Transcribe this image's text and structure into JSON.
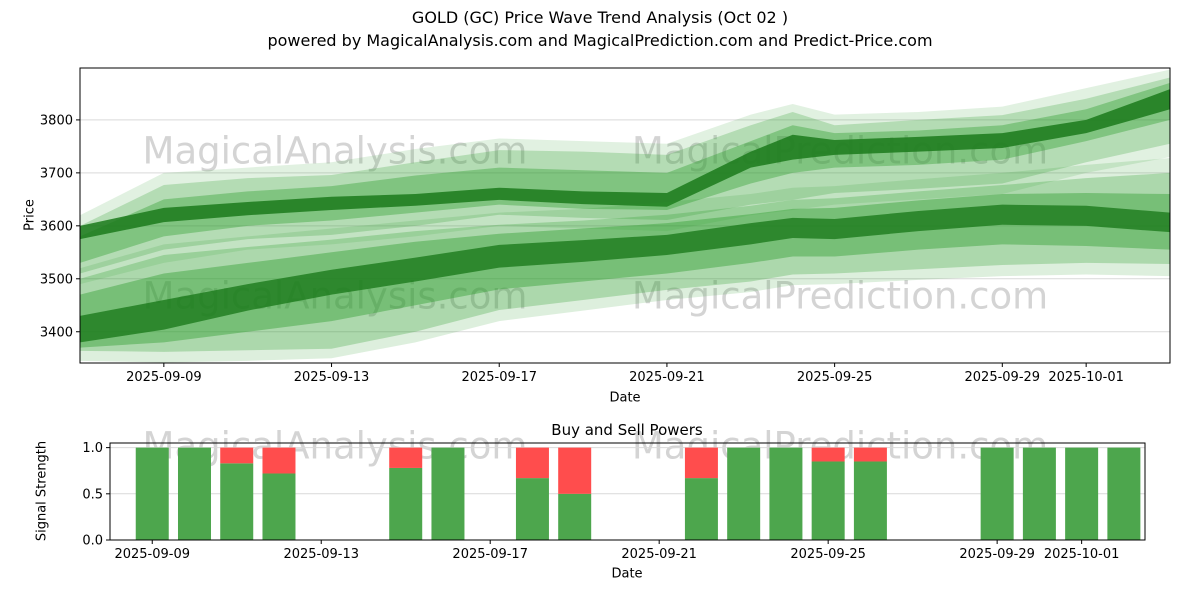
{
  "title": {
    "line1": "GOLD (GC) Price Wave Trend Analysis (Oct 02 )",
    "line2": "powered by MagicalAnalysis.com and MagicalPrediction.com and Predict-Price.com"
  },
  "watermarks": {
    "analysis": "MagicalAnalysis.com",
    "prediction": "MagicalPrediction.com"
  },
  "colors": {
    "band_green": "#2e9e2e",
    "band_dark_green": "#1b7a1b",
    "bar_green": "#4da64d",
    "bar_red": "#ff4d4d",
    "grid": "#d9d9d9",
    "spine": "#000000",
    "tick_text": "#000000"
  },
  "chart_data": [
    {
      "type": "area",
      "name": "price-wave-trend",
      "title": "",
      "ylabel": "Price",
      "xlabel": "Date",
      "ylim": [
        3341,
        3898
      ],
      "xdomain": [
        "2025-09-07",
        "2025-10-03"
      ],
      "grid": "horizontal",
      "legend": "none",
      "yticks": [
        {
          "v": 3400,
          "label": "3400"
        },
        {
          "v": 3500,
          "label": "3500"
        },
        {
          "v": 3600,
          "label": "3600"
        },
        {
          "v": 3700,
          "label": "3700"
        },
        {
          "v": 3800,
          "label": "3800"
        }
      ],
      "xticks": [
        {
          "date": "2025-09-09",
          "label": "2025-09-09"
        },
        {
          "date": "2025-09-13",
          "label": "2025-09-13"
        },
        {
          "date": "2025-09-17",
          "label": "2025-09-17"
        },
        {
          "date": "2025-09-21",
          "label": "2025-09-21"
        },
        {
          "date": "2025-09-25",
          "label": "2025-09-25"
        },
        {
          "date": "2025-09-29",
          "label": "2025-09-29"
        },
        {
          "date": "2025-10-01",
          "label": "2025-10-01"
        }
      ],
      "band_dates": [
        "2025-09-07",
        "2025-09-09",
        "2025-09-11",
        "2025-09-13",
        "2025-09-15",
        "2025-09-17",
        "2025-09-19",
        "2025-09-21",
        "2025-09-23",
        "2025-09-24",
        "2025-09-25",
        "2025-09-27",
        "2025-09-29",
        "2025-10-01",
        "2025-10-03"
      ],
      "bands": [
        {
          "name": "upper-faint",
          "color": "band_green",
          "opacity": 0.14,
          "hi": [
            3620,
            3700,
            3710,
            3720,
            3745,
            3765,
            3760,
            3755,
            3810,
            3830,
            3810,
            3815,
            3825,
            3860,
            3895
          ],
          "lo": [
            3490,
            3530,
            3555,
            3565,
            3580,
            3600,
            3595,
            3590,
            3620,
            3630,
            3640,
            3650,
            3660,
            3700,
            3730
          ]
        },
        {
          "name": "upper-outer",
          "color": "band_green",
          "opacity": 0.25,
          "hi": [
            3600,
            3677,
            3690,
            3696,
            3720,
            3743,
            3740,
            3734,
            3790,
            3815,
            3790,
            3800,
            3809,
            3840,
            3880
          ],
          "lo": [
            3510,
            3555,
            3575,
            3583,
            3600,
            3621,
            3615,
            3611,
            3640,
            3649,
            3662,
            3670,
            3680,
            3720,
            3755
          ]
        },
        {
          "name": "upper-mid",
          "color": "band_green",
          "opacity": 0.38,
          "hi": [
            3580,
            3650,
            3665,
            3675,
            3695,
            3710,
            3705,
            3700,
            3760,
            3790,
            3775,
            3780,
            3790,
            3820,
            3870
          ],
          "lo": [
            3530,
            3580,
            3600,
            3610,
            3625,
            3640,
            3632,
            3630,
            3680,
            3700,
            3710,
            3715,
            3725,
            3760,
            3800
          ]
        },
        {
          "name": "upper-core",
          "color": "band_dark_green",
          "opacity": 0.85,
          "hi": [
            3600,
            3634,
            3645,
            3655,
            3660,
            3672,
            3665,
            3662,
            3740,
            3772,
            3762,
            3768,
            3775,
            3800,
            3858
          ],
          "lo": [
            3575,
            3607,
            3620,
            3630,
            3638,
            3649,
            3641,
            3636,
            3710,
            3725,
            3734,
            3740,
            3747,
            3775,
            3820
          ]
        },
        {
          "name": "lower-faint",
          "color": "band_green",
          "opacity": 0.16,
          "hi": [
            3520,
            3565,
            3580,
            3595,
            3610,
            3625,
            3632,
            3645,
            3660,
            3672,
            3675,
            3688,
            3700,
            3715,
            3728
          ],
          "lo": [
            3345,
            3342,
            3345,
            3350,
            3380,
            3420,
            3440,
            3460,
            3475,
            3488,
            3490,
            3498,
            3505,
            3508,
            3505
          ]
        },
        {
          "name": "lower-outer",
          "color": "band_green",
          "opacity": 0.28,
          "hi": [
            3500,
            3545,
            3560,
            3574,
            3590,
            3602,
            3610,
            3621,
            3638,
            3649,
            3652,
            3665,
            3677,
            3690,
            3700
          ],
          "lo": [
            3364,
            3362,
            3365,
            3368,
            3400,
            3441,
            3460,
            3479,
            3495,
            3508,
            3510,
            3518,
            3526,
            3530,
            3528
          ]
        },
        {
          "name": "lower-mid",
          "color": "band_green",
          "opacity": 0.42,
          "hi": [
            3470,
            3510,
            3530,
            3550,
            3570,
            3585,
            3595,
            3605,
            3622,
            3632,
            3634,
            3648,
            3660,
            3662,
            3660
          ],
          "lo": [
            3370,
            3380,
            3400,
            3420,
            3450,
            3480,
            3495,
            3510,
            3530,
            3542,
            3542,
            3555,
            3565,
            3562,
            3555
          ]
        },
        {
          "name": "lower-core",
          "color": "band_dark_green",
          "opacity": 0.8,
          "hi": [
            3430,
            3460,
            3490,
            3517,
            3540,
            3564,
            3573,
            3583,
            3605,
            3615,
            3613,
            3628,
            3640,
            3638,
            3625
          ],
          "lo": [
            3380,
            3404,
            3440,
            3470,
            3495,
            3521,
            3532,
            3545,
            3565,
            3577,
            3575,
            3590,
            3602,
            3600,
            3588
          ]
        }
      ]
    },
    {
      "type": "bar",
      "name": "buy-sell-powers",
      "title": "Buy and Sell Powers",
      "ylabel": "Signal Strength",
      "xlabel": "Date",
      "ylim": [
        0,
        1.05
      ],
      "xdomain": [
        "2025-09-08",
        "2025-10-02"
      ],
      "grid": "horizontal",
      "yticks": [
        {
          "v": 0,
          "label": "0.0"
        },
        {
          "v": 0.5,
          "label": "0.5"
        },
        {
          "v": 1,
          "label": "1.0"
        }
      ],
      "xticks": [
        {
          "date": "2025-09-09",
          "label": "2025-09-09"
        },
        {
          "date": "2025-09-13",
          "label": "2025-09-13"
        },
        {
          "date": "2025-09-17",
          "label": "2025-09-17"
        },
        {
          "date": "2025-09-21",
          "label": "2025-09-21"
        },
        {
          "date": "2025-09-25",
          "label": "2025-09-25"
        },
        {
          "date": "2025-09-29",
          "label": "2025-09-29"
        },
        {
          "date": "2025-10-01",
          "label": "2025-10-01"
        }
      ],
      "series": [
        {
          "name": "buy-power",
          "color": "bar_green"
        },
        {
          "name": "sell-power",
          "color": "bar_red"
        }
      ],
      "bars": [
        {
          "date": "2025-09-09",
          "buy": 1.0,
          "sell": 0.0
        },
        {
          "date": "2025-09-10",
          "buy": 1.0,
          "sell": 0.0
        },
        {
          "date": "2025-09-11",
          "buy": 0.83,
          "sell": 0.17
        },
        {
          "date": "2025-09-12",
          "buy": 0.72,
          "sell": 0.28
        },
        {
          "date": "2025-09-15",
          "buy": 0.78,
          "sell": 0.22
        },
        {
          "date": "2025-09-16",
          "buy": 1.0,
          "sell": 0.0
        },
        {
          "date": "2025-09-18",
          "buy": 0.67,
          "sell": 0.33
        },
        {
          "date": "2025-09-19",
          "buy": 0.5,
          "sell": 0.5
        },
        {
          "date": "2025-09-22",
          "buy": 0.67,
          "sell": 0.33
        },
        {
          "date": "2025-09-23",
          "buy": 1.0,
          "sell": 0.0
        },
        {
          "date": "2025-09-24",
          "buy": 1.0,
          "sell": 0.0
        },
        {
          "date": "2025-09-25",
          "buy": 0.85,
          "sell": 0.15
        },
        {
          "date": "2025-09-26",
          "buy": 0.85,
          "sell": 0.15
        },
        {
          "date": "2025-09-29",
          "buy": 1.0,
          "sell": 0.0
        },
        {
          "date": "2025-09-30",
          "buy": 1.0,
          "sell": 0.0
        },
        {
          "date": "2025-10-01",
          "buy": 1.0,
          "sell": 0.0
        },
        {
          "date": "2025-10-02",
          "buy": 1.0,
          "sell": 0.0
        }
      ]
    }
  ]
}
